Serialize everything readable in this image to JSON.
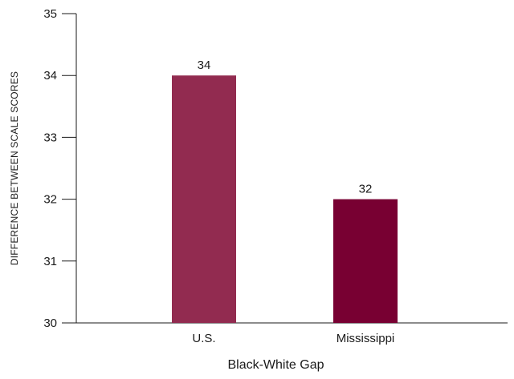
{
  "chart_data": {
    "type": "bar",
    "title": "",
    "xlabel": "Black-White Gap",
    "ylabel": "DIFFERENCE BETWEEN SCALE SCORES",
    "categories": [
      "U.S.",
      "Mississippi"
    ],
    "values": [
      34,
      32
    ],
    "data_labels": [
      "34",
      "32"
    ],
    "bar_colors": [
      "#922b50",
      "#780032"
    ],
    "ylim": [
      30,
      35
    ],
    "yticks": [
      30,
      31,
      32,
      33,
      34,
      35
    ],
    "ytick_labels": [
      "30",
      "31",
      "32",
      "33",
      "34",
      "35"
    ],
    "grid": false,
    "legend": "none"
  }
}
